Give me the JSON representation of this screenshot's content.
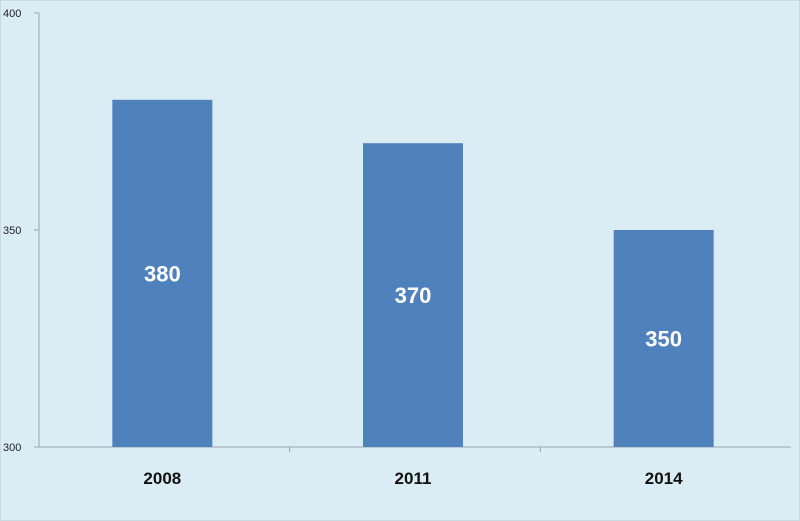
{
  "chart_data": {
    "type": "bar",
    "categories": [
      "2008",
      "2011",
      "2014"
    ],
    "values": [
      380,
      370,
      350
    ],
    "data_labels": [
      "380",
      "370",
      "350"
    ],
    "title": "",
    "xlabel": "",
    "ylabel": "",
    "ylim": [
      300,
      400
    ],
    "yticks": [
      300,
      350,
      400
    ],
    "ytick_labels": [
      "300",
      "350",
      "400"
    ],
    "grid": false,
    "legend": "none",
    "colors": {
      "bar": "#4f81bd",
      "background": "#dbedf4",
      "axis": "#9aa7ad"
    }
  }
}
